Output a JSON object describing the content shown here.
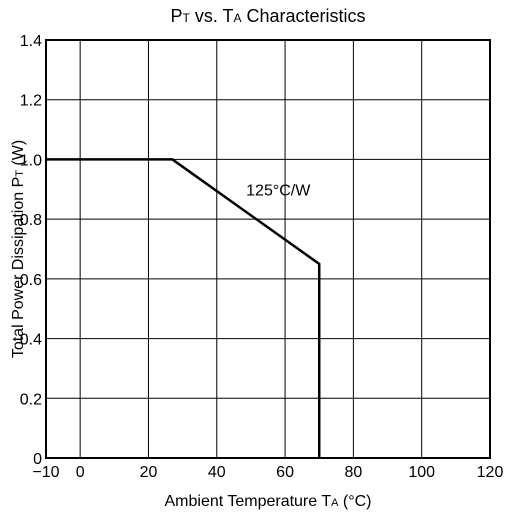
{
  "chart_data": {
    "type": "line",
    "title": {
      "parts": [
        {
          "text": "P",
          "sub": false
        },
        {
          "text": "T",
          "sub": true
        },
        {
          "text": " vs. T",
          "sub": false
        },
        {
          "text": "A",
          "sub": true
        },
        {
          "text": " Characteristics",
          "sub": false
        }
      ]
    },
    "xlabel": {
      "parts": [
        {
          "text": "Ambient Temperature T",
          "sub": false
        },
        {
          "text": "A",
          "sub": true
        },
        {
          "text": " (°C)",
          "sub": false
        }
      ]
    },
    "ylabel": {
      "parts": [
        {
          "text": "Total Power Dissipation P",
          "sub": false
        },
        {
          "text": "T",
          "sub": true
        },
        {
          "text": " (W)",
          "sub": false
        }
      ]
    },
    "xlim": [
      -10,
      120
    ],
    "ylim": [
      0,
      1.4
    ],
    "x_ticks": [
      {
        "value": -10,
        "label": "−10"
      },
      {
        "value": 0,
        "label": "0"
      },
      {
        "value": 20,
        "label": "20"
      },
      {
        "value": 40,
        "label": "40"
      },
      {
        "value": 60,
        "label": "60"
      },
      {
        "value": 80,
        "label": "80"
      },
      {
        "value": 100,
        "label": "100"
      },
      {
        "value": 120,
        "label": "120"
      }
    ],
    "y_ticks": [
      {
        "value": 0,
        "label": "0"
      },
      {
        "value": 0.2,
        "label": "0.2"
      },
      {
        "value": 0.4,
        "label": "0.4"
      },
      {
        "value": 0.6,
        "label": "0.6"
      },
      {
        "value": 0.8,
        "label": "0.8"
      },
      {
        "value": 1.0,
        "label": "1.0"
      },
      {
        "value": 1.2,
        "label": "1.2"
      },
      {
        "value": 1.4,
        "label": "1.4"
      }
    ],
    "grid": true,
    "series": [
      {
        "x": [
          -10,
          27,
          70,
          70
        ],
        "y": [
          1.0,
          1.0,
          0.65,
          0
        ]
      }
    ],
    "annotations": [
      {
        "text": "125°C/W",
        "x": 58,
        "y": 0.88
      }
    ]
  }
}
